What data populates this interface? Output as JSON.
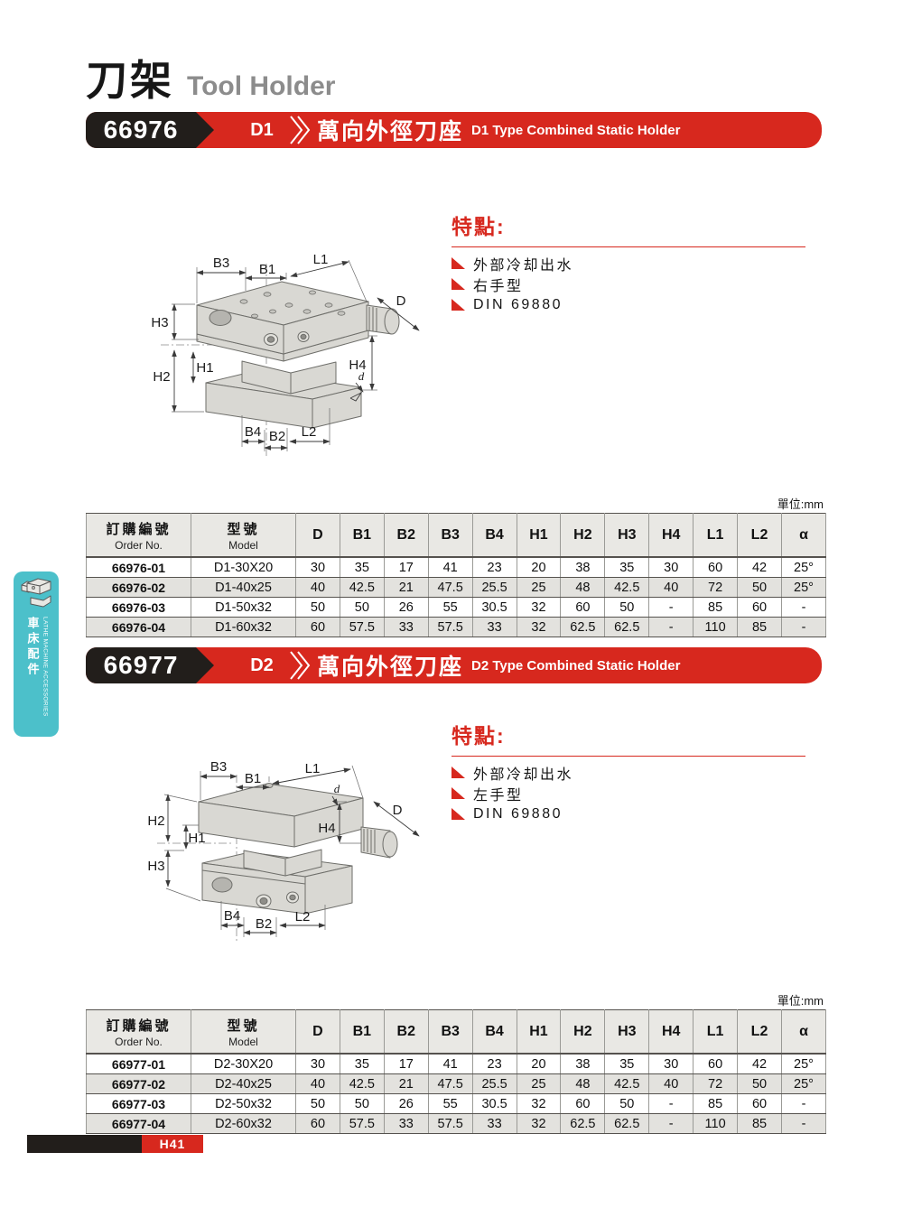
{
  "page": {
    "title_zh": "刀架",
    "title_en": "Tool Holder",
    "unit_label": "單位:mm",
    "page_number": "H41"
  },
  "sidebar": {
    "label_zh": "車床配件",
    "label_en": "LATHE MACHINE ACCESSORIES",
    "color": "#4cc0ca"
  },
  "colors": {
    "accent_red": "#d7281e",
    "banner_black": "#221e1b",
    "title_gray": "#8c8c8c",
    "row_alt": "#e3e2de"
  },
  "drawings": {
    "dim_labels": [
      "B3",
      "B1",
      "L1",
      "H3",
      "H2",
      "H1",
      "H4",
      "D",
      "d",
      "B4",
      "B2",
      "L2"
    ]
  },
  "sections": [
    {
      "order_no": "66976",
      "type_code": "D1",
      "banner_zh": "萬向外徑刀座",
      "banner_en": "D1 Type Combined Static Holder",
      "features_title": "特點:",
      "features": [
        "外部冷却出水",
        "右手型",
        "DIN 69880"
      ],
      "table": {
        "col1_zh": "訂購編號",
        "col1_en": "Order No.",
        "col2_zh": "型號",
        "col2_en": "Model",
        "dim_columns": [
          "D",
          "B1",
          "B2",
          "B3",
          "B4",
          "H1",
          "H2",
          "H3",
          "H4",
          "L1",
          "L2",
          "α"
        ],
        "rows": [
          [
            "66976-01",
            "D1-30X20",
            "30",
            "35",
            "17",
            "41",
            "23",
            "20",
            "38",
            "35",
            "30",
            "60",
            "42",
            "25°"
          ],
          [
            "66976-02",
            "D1-40x25",
            "40",
            "42.5",
            "21",
            "47.5",
            "25.5",
            "25",
            "48",
            "42.5",
            "40",
            "72",
            "50",
            "25°"
          ],
          [
            "66976-03",
            "D1-50x32",
            "50",
            "50",
            "26",
            "55",
            "30.5",
            "32",
            "60",
            "50",
            "-",
            "85",
            "60",
            "-"
          ],
          [
            "66976-04",
            "D1-60x32",
            "60",
            "57.5",
            "33",
            "57.5",
            "33",
            "32",
            "62.5",
            "62.5",
            "-",
            "110",
            "85",
            "-"
          ]
        ]
      }
    },
    {
      "order_no": "66977",
      "type_code": "D2",
      "banner_zh": "萬向外徑刀座",
      "banner_en": "D2 Type Combined Static Holder",
      "features_title": "特點:",
      "features": [
        "外部冷却出水",
        "左手型",
        "DIN 69880"
      ],
      "table": {
        "col1_zh": "訂購編號",
        "col1_en": "Order No.",
        "col2_zh": "型號",
        "col2_en": "Model",
        "dim_columns": [
          "D",
          "B1",
          "B2",
          "B3",
          "B4",
          "H1",
          "H2",
          "H3",
          "H4",
          "L1",
          "L2",
          "α"
        ],
        "rows": [
          [
            "66977-01",
            "D2-30X20",
            "30",
            "35",
            "17",
            "41",
            "23",
            "20",
            "38",
            "35",
            "30",
            "60",
            "42",
            "25°"
          ],
          [
            "66977-02",
            "D2-40x25",
            "40",
            "42.5",
            "21",
            "47.5",
            "25.5",
            "25",
            "48",
            "42.5",
            "40",
            "72",
            "50",
            "25°"
          ],
          [
            "66977-03",
            "D2-50x32",
            "50",
            "50",
            "26",
            "55",
            "30.5",
            "32",
            "60",
            "50",
            "-",
            "85",
            "60",
            "-"
          ],
          [
            "66977-04",
            "D2-60x32",
            "60",
            "57.5",
            "33",
            "57.5",
            "33",
            "32",
            "62.5",
            "62.5",
            "-",
            "110",
            "85",
            "-"
          ]
        ]
      }
    }
  ]
}
